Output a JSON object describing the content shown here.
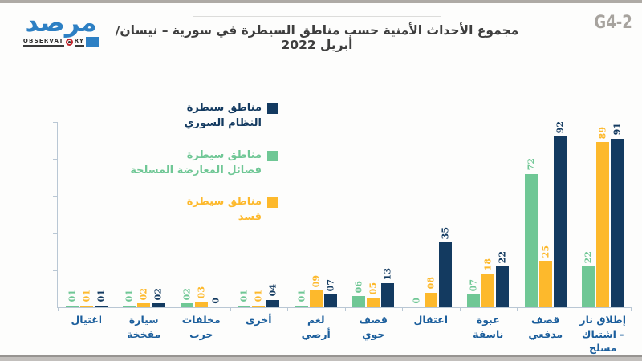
{
  "page": {
    "top_strip_color": "#aeaaa5",
    "bottom_strip_color": "#c2bfbc",
    "background": "#fdfdfc"
  },
  "header": {
    "code": "G4-2",
    "title": "مجموع الأحداث الأمنية حسب مناطق السيطرة في سورية – نيسان/ أبريل 2022",
    "logo": {
      "arabic": "مرصد",
      "latin_part1": "OBSERVAT",
      "latin_part2": "RY",
      "brand_blue": "#2d80c4",
      "target_red": "#c4242b"
    }
  },
  "chart_data": {
    "type": "bar",
    "direction": "rtl",
    "title": "مجموع الأحداث الأمنية حسب مناطق السيطرة في سورية – نيسان/ أبريل 2022",
    "xlabel": "",
    "ylabel": "",
    "ylim": [
      0,
      100
    ],
    "gridlines": false,
    "legend_position": "upper-left-of-plot",
    "axis_color": "#b9c7d4",
    "category_label_color": "#1b5e9c",
    "note": "chart reads right-to-left; rightmost category is first; categories below are listed in visual left-to-right order",
    "categories": [
      {
        "label": "اغتيال"
      },
      {
        "label": "سيارة\nمفخخة"
      },
      {
        "label": "مخلفات\nحرب"
      },
      {
        "label": "أخرى"
      },
      {
        "label": "لغم\nأرضي"
      },
      {
        "label": "قصف\nجوي"
      },
      {
        "label": "اعتقال"
      },
      {
        "label": "عبوة\nناسفة"
      },
      {
        "label": "قصف\nمدفعي"
      },
      {
        "label": "إطلاق نار\n- اشتباك\nمسلح"
      }
    ],
    "series": [
      {
        "id": "regime",
        "name": "مناطق سيطرة\nالنظام السوري",
        "color": "#133a60",
        "values": [
          1,
          2,
          0,
          4,
          7,
          13,
          35,
          22,
          92,
          91
        ],
        "labels": [
          "01",
          "02",
          "0",
          "04",
          "07",
          "13",
          "35",
          "22",
          "92",
          "91"
        ]
      },
      {
        "id": "opposition",
        "name": "مناطق سيطرة\nفصائل المعارضة المسلحة",
        "color": "#6fc795",
        "values": [
          1,
          1,
          2,
          1,
          1,
          6,
          0,
          7,
          72,
          22
        ],
        "labels": [
          "01",
          "01",
          "02",
          "01",
          "01",
          "06",
          "0",
          "07",
          "72",
          "22"
        ]
      },
      {
        "id": "sdf",
        "name": "مناطق سيطرة\nقسد",
        "color": "#fdb92c",
        "values": [
          1,
          2,
          3,
          1,
          9,
          5,
          8,
          18,
          25,
          89
        ],
        "labels": [
          "01",
          "02",
          "03",
          "01",
          "09",
          "05",
          "08",
          "18",
          "25",
          "89"
        ]
      }
    ],
    "bar_order_ltr": [
      "opposition",
      "sdf",
      "regime"
    ],
    "y_tick_interval": 20
  }
}
